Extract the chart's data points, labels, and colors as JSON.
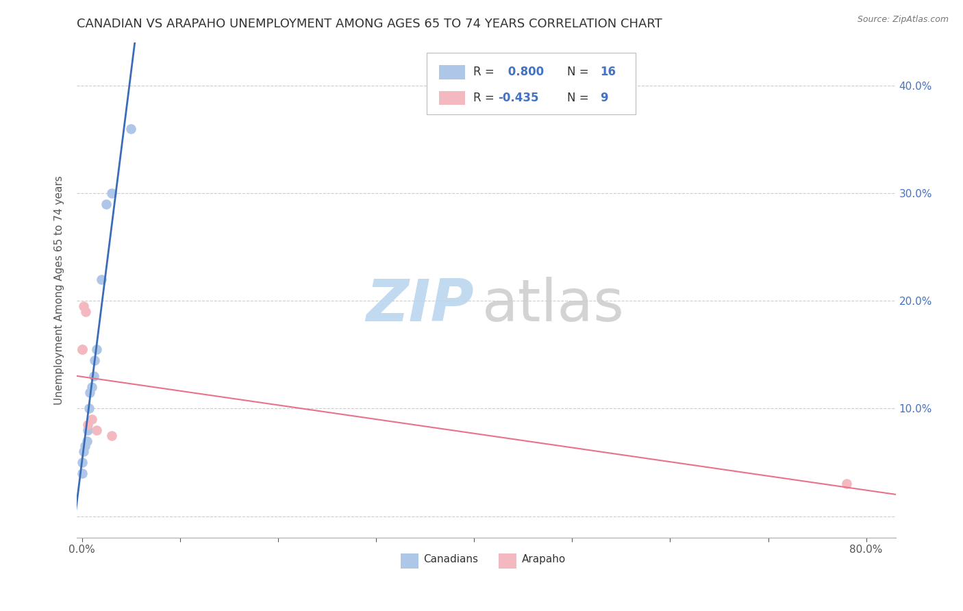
{
  "title": "CANADIAN VS ARAPAHO UNEMPLOYMENT AMONG AGES 65 TO 74 YEARS CORRELATION CHART",
  "source": "Source: ZipAtlas.com",
  "ylabel": "Unemployment Among Ages 65 to 74 years",
  "xlim": [
    -0.005,
    0.83
  ],
  "ylim": [
    -0.02,
    0.44
  ],
  "xticks": [
    0.0,
    0.1,
    0.2,
    0.3,
    0.4,
    0.5,
    0.6,
    0.7,
    0.8
  ],
  "xticklabels": [
    "0.0%",
    "",
    "",
    "",
    "",
    "",
    "",
    "",
    "80.0%"
  ],
  "yticks": [
    0.0,
    0.1,
    0.2,
    0.3,
    0.4
  ],
  "yticklabels_right": [
    "",
    "10.0%",
    "20.0%",
    "30.0%",
    "40.0%"
  ],
  "canadian_x": [
    0.0,
    0.0,
    0.002,
    0.003,
    0.005,
    0.006,
    0.007,
    0.008,
    0.01,
    0.012,
    0.013,
    0.015,
    0.02,
    0.025,
    0.03,
    0.05
  ],
  "canadian_y": [
    0.04,
    0.05,
    0.06,
    0.065,
    0.07,
    0.08,
    0.1,
    0.115,
    0.12,
    0.13,
    0.145,
    0.155,
    0.22,
    0.29,
    0.3,
    0.36
  ],
  "arapaho_x": [
    0.0,
    0.0,
    0.002,
    0.004,
    0.006,
    0.01,
    0.015,
    0.03,
    0.78
  ],
  "arapaho_y": [
    0.155,
    0.155,
    0.195,
    0.19,
    0.085,
    0.09,
    0.08,
    0.075,
    0.03
  ],
  "canadian_color": "#aec6e8",
  "arapaho_color": "#f4b8c1",
  "canadian_line_color": "#3a6db5",
  "arapaho_line_color": "#e8728a",
  "R_canadian": 0.8,
  "N_canadian": 16,
  "R_arapaho": -0.435,
  "N_arapaho": 9,
  "background_color": "#ffffff",
  "grid_color": "#cccccc",
  "title_color": "#333333",
  "tick_color_right": "#4472c4",
  "tick_color_bottom": "#555555",
  "title_fontsize": 13,
  "axis_fontsize": 11,
  "tick_fontsize": 11,
  "legend_R_N_color": "#4472c4",
  "watermark_zip_color": "#b8d4ee",
  "watermark_atlas_color": "#cccccc"
}
